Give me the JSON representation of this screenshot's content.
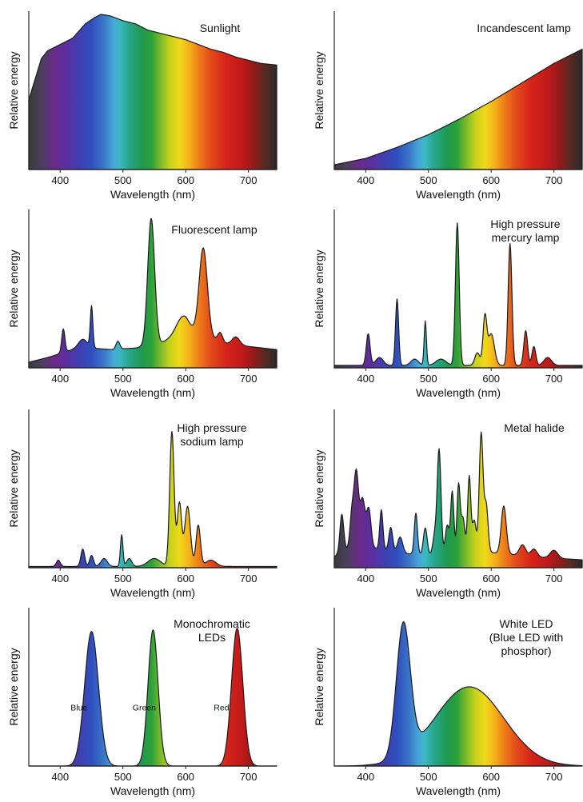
{
  "chart_data": [
    {
      "id": "sunlight",
      "type": "area",
      "title": [
        "Sunlight"
      ],
      "xlabel": "Wavelength (nm)",
      "ylabel": "Relative energy",
      "xlim": [
        350,
        745
      ],
      "ylim": [
        0,
        1
      ],
      "xticks": [
        400,
        500,
        600,
        700
      ],
      "curve": {
        "background": 0,
        "points": [
          [
            350,
            0.44
          ],
          [
            360,
            0.57
          ],
          [
            370,
            0.7
          ],
          [
            380,
            0.75
          ],
          [
            390,
            0.77
          ],
          [
            400,
            0.79
          ],
          [
            420,
            0.83
          ],
          [
            440,
            0.92
          ],
          [
            455,
            0.96
          ],
          [
            465,
            0.98
          ],
          [
            480,
            0.97
          ],
          [
            500,
            0.94
          ],
          [
            520,
            0.92
          ],
          [
            540,
            0.88
          ],
          [
            560,
            0.86
          ],
          [
            580,
            0.84
          ],
          [
            600,
            0.82
          ],
          [
            620,
            0.79
          ],
          [
            640,
            0.76
          ],
          [
            660,
            0.74
          ],
          [
            680,
            0.71
          ],
          [
            700,
            0.69
          ],
          [
            720,
            0.67
          ],
          [
            745,
            0.66
          ]
        ]
      },
      "annotations": []
    },
    {
      "id": "incandescent",
      "type": "area",
      "title": [
        "Incandescent lamp"
      ],
      "xlabel": "Wavelength (nm)",
      "ylabel": "Relative energy",
      "xlim": [
        350,
        745
      ],
      "ylim": [
        0,
        1
      ],
      "xticks": [
        400,
        500,
        600,
        700
      ],
      "curve": {
        "background": 0,
        "points": [
          [
            350,
            0.03
          ],
          [
            400,
            0.07
          ],
          [
            450,
            0.14
          ],
          [
            500,
            0.22
          ],
          [
            550,
            0.32
          ],
          [
            600,
            0.43
          ],
          [
            650,
            0.55
          ],
          [
            700,
            0.67
          ],
          [
            745,
            0.76
          ]
        ]
      },
      "annotations": []
    },
    {
      "id": "fluorescent",
      "type": "area",
      "title": [
        "Fluorescent lamp"
      ],
      "xlabel": "Wavelength (nm)",
      "ylabel": "Relative energy",
      "xlim": [
        350,
        745
      ],
      "ylim": [
        0,
        1
      ],
      "xticks": [
        400,
        500,
        600,
        700
      ],
      "curve": {
        "background": 0.035,
        "points": [
          [
            350,
            0.0
          ],
          [
            380,
            0.03
          ],
          [
            420,
            0.08
          ],
          [
            450,
            0.09
          ],
          [
            480,
            0.08
          ],
          [
            520,
            0.09
          ],
          [
            560,
            0.12
          ],
          [
            600,
            0.2
          ],
          [
            630,
            0.17
          ],
          [
            660,
            0.12
          ],
          [
            700,
            0.1
          ],
          [
            745,
            0.08
          ]
        ]
      },
      "peaks": [
        [
          405,
          0.15,
          2.5
        ],
        [
          436,
          0.06,
          7
        ],
        [
          450,
          0.26,
          2
        ],
        [
          492,
          0.05,
          3
        ],
        [
          545,
          0.8,
          5.5
        ],
        [
          595,
          0.1,
          10
        ],
        [
          628,
          0.55,
          6.5
        ],
        [
          655,
          0.06,
          4
        ],
        [
          680,
          0.05,
          6
        ]
      ],
      "annotations": []
    },
    {
      "id": "mercury",
      "type": "area",
      "title": [
        "High pressure",
        "mercury lamp"
      ],
      "xlabel": "Wavelength (nm)",
      "ylabel": "Relative energy",
      "xlim": [
        350,
        745
      ],
      "ylim": [
        0,
        1
      ],
      "xticks": [
        400,
        500,
        600,
        700
      ],
      "curve": {
        "background": 0.015,
        "points": [
          [
            350,
            0.0
          ],
          [
            745,
            0.0
          ]
        ]
      },
      "peaks": [
        [
          404,
          0.2,
          3
        ],
        [
          422,
          0.05,
          6
        ],
        [
          450,
          0.42,
          2.5
        ],
        [
          478,
          0.04,
          6
        ],
        [
          495,
          0.28,
          1.8
        ],
        [
          520,
          0.04,
          8
        ],
        [
          546,
          0.9,
          3
        ],
        [
          578,
          0.08,
          4
        ],
        [
          590,
          0.3,
          3
        ],
        [
          600,
          0.2,
          5
        ],
        [
          630,
          0.77,
          3
        ],
        [
          655,
          0.22,
          3
        ],
        [
          668,
          0.12,
          3
        ],
        [
          690,
          0.05,
          6
        ]
      ],
      "annotations": []
    },
    {
      "id": "sodium",
      "type": "area",
      "title": [
        "High pressure",
        "sodium lamp"
      ],
      "xlabel": "Wavelength (nm)",
      "ylabel": "Relative energy",
      "xlim": [
        350,
        745
      ],
      "ylim": [
        0,
        1
      ],
      "xticks": [
        400,
        500,
        600,
        700
      ],
      "curve": {
        "background": 0.008,
        "points": [
          [
            350,
            0.0
          ],
          [
            745,
            0.0
          ]
        ]
      },
      "peaks": [
        [
          397,
          0.04,
          3
        ],
        [
          436,
          0.11,
          3
        ],
        [
          450,
          0.07,
          3
        ],
        [
          470,
          0.05,
          5
        ],
        [
          498,
          0.2,
          2
        ],
        [
          510,
          0.05,
          4
        ],
        [
          550,
          0.05,
          10
        ],
        [
          578,
          0.85,
          3.5
        ],
        [
          590,
          0.4,
          3.5
        ],
        [
          603,
          0.38,
          4.5
        ],
        [
          620,
          0.26,
          3.5
        ],
        [
          640,
          0.04,
          8
        ]
      ],
      "annotations": []
    },
    {
      "id": "metal-halide",
      "type": "area",
      "title": [
        "Metal halide"
      ],
      "xlabel": "Wavelength (nm)",
      "ylabel": "Relative energy",
      "xlim": [
        350,
        745
      ],
      "ylim": [
        0,
        1
      ],
      "xticks": [
        400,
        500,
        600,
        700
      ],
      "curve": {
        "background": 0.02,
        "points": [
          [
            350,
            0.05
          ],
          [
            380,
            0.12
          ],
          [
            420,
            0.1
          ],
          [
            460,
            0.07
          ],
          [
            500,
            0.06
          ],
          [
            540,
            0.07
          ],
          [
            580,
            0.08
          ],
          [
            620,
            0.07
          ],
          [
            660,
            0.05
          ],
          [
            700,
            0.04
          ],
          [
            745,
            0.03
          ]
        ]
      },
      "peaks": [
        [
          362,
          0.24,
          3
        ],
        [
          378,
          0.2,
          3
        ],
        [
          385,
          0.46,
          3.5
        ],
        [
          395,
          0.3,
          4
        ],
        [
          405,
          0.24,
          3.5
        ],
        [
          425,
          0.25,
          2.5
        ],
        [
          440,
          0.15,
          3
        ],
        [
          455,
          0.1,
          4
        ],
        [
          480,
          0.26,
          2.5
        ],
        [
          495,
          0.17,
          3
        ],
        [
          510,
          0.12,
          3
        ],
        [
          517,
          0.66,
          3
        ],
        [
          530,
          0.18,
          3
        ],
        [
          538,
          0.39,
          2.5
        ],
        [
          548,
          0.43,
          2.5
        ],
        [
          555,
          0.22,
          3
        ],
        [
          565,
          0.48,
          2.5
        ],
        [
          573,
          0.2,
          3
        ],
        [
          584,
          0.75,
          3
        ],
        [
          592,
          0.3,
          3
        ],
        [
          620,
          0.3,
          4
        ],
        [
          650,
          0.07,
          5
        ],
        [
          668,
          0.05,
          5
        ],
        [
          700,
          0.05,
          6
        ]
      ],
      "annotations": []
    },
    {
      "id": "monochromatic",
      "type": "area",
      "title": [
        "Monochromatic",
        "LEDs"
      ],
      "xlabel": "Wavelength (nm)",
      "ylabel": "Relative energy",
      "xlim": [
        350,
        745
      ],
      "ylim": [
        0,
        1
      ],
      "xticks": [
        400,
        500,
        600,
        700
      ],
      "curve": {
        "background": 0,
        "points": [
          [
            350,
            0.0
          ],
          [
            745,
            0.0
          ]
        ]
      },
      "peaks": [
        [
          450,
          0.85,
          11
        ],
        [
          548,
          0.86,
          8
        ],
        [
          682,
          0.87,
          9
        ]
      ],
      "annotations": [
        {
          "text": "Blue",
          "x": 430,
          "y": 0.35
        },
        {
          "text": "Green",
          "x": 534,
          "y": 0.35
        },
        {
          "text": "Red",
          "x": 657,
          "y": 0.35
        }
      ]
    },
    {
      "id": "white-led",
      "type": "area",
      "title": [
        "White LED",
        "(Blue LED with",
        "phosphor)"
      ],
      "xlabel": "Wavelength (nm)",
      "ylabel": "Relative energy",
      "xlim": [
        350,
        745
      ],
      "ylim": [
        0,
        1
      ],
      "xticks": [
        400,
        500,
        600,
        700
      ],
      "curve": {
        "background": 0,
        "points": [
          [
            350,
            0.0
          ],
          [
            745,
            0.0
          ]
        ]
      },
      "peaks": [
        [
          460,
          0.83,
          11
        ],
        [
          565,
          0.5,
          55
        ]
      ],
      "annotations": []
    }
  ]
}
